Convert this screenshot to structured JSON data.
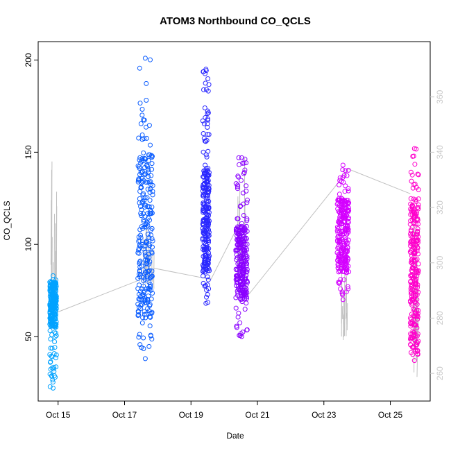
{
  "chart_data": {
    "type": "scatter",
    "title": "ATOM3 Northbound CO_QCLS",
    "xlabel": "Date",
    "ylabel": "CO_QCLS",
    "x_ticks": [
      "Oct 15",
      "Oct 17",
      "Oct 19",
      "Oct 21",
      "Oct 23",
      "Oct 25"
    ],
    "x_tick_days": [
      15,
      17,
      19,
      21,
      23,
      25
    ],
    "xlim": [
      14.4,
      26.2
    ],
    "ylim": [
      15,
      210
    ],
    "y_ticks": [
      50,
      100,
      150,
      200
    ],
    "y2lim": [
      250,
      380
    ],
    "y2_ticks": [
      260,
      280,
      300,
      320,
      340,
      360
    ],
    "grid": false,
    "legend": "none",
    "marker": "open-circle",
    "secondary_line_color": "#c0c0c0",
    "series": [
      {
        "color": "#00a2ff",
        "x": [
          14.75,
          14.95
        ],
        "y": [
          22,
          83
        ],
        "core": [
          55,
          80
        ]
      },
      {
        "color": "#0a5cff",
        "x": [
          17.4,
          17.85
        ],
        "y": [
          38,
          201
        ],
        "core": [
          60,
          150
        ]
      },
      {
        "color": "#2a28ff",
        "x": [
          19.35,
          19.55
        ],
        "y": [
          68,
          195
        ],
        "core": [
          85,
          140
        ]
      },
      {
        "color": "#8a00ff",
        "x": [
          20.35,
          20.7
        ],
        "y": [
          50,
          147
        ],
        "core": [
          70,
          110
        ]
      },
      {
        "color": "#d400ff",
        "x": [
          23.4,
          23.75
        ],
        "y": [
          70,
          143
        ],
        "core": [
          85,
          125
        ]
      },
      {
        "color": "#ff00cc",
        "x": [
          25.6,
          25.85
        ],
        "y": [
          37,
          152
        ],
        "core": [
          40,
          125
        ]
      }
    ],
    "secondary_line": [
      {
        "x": 14.95,
        "y2": 282
      },
      {
        "x": 17.5,
        "y2": 294
      },
      {
        "x": 17.9,
        "y2": 298
      },
      {
        "x": 19.6,
        "y2": 294
      },
      {
        "x": 20.4,
        "y2": 313
      },
      {
        "x": 20.7,
        "y2": 288
      },
      {
        "x": 23.5,
        "y2": 330
      },
      {
        "x": 23.72,
        "y2": 334
      },
      {
        "x": 25.6,
        "y2": 325
      }
    ],
    "secondary_spikes": [
      {
        "x": [
          14.75,
          14.95
        ],
        "y2": [
          276,
          342
        ]
      },
      {
        "x": [
          17.45,
          17.9
        ],
        "y2": [
          290,
          318
        ]
      },
      {
        "x": [
          20.4,
          20.65
        ],
        "y2": [
          290,
          338
        ]
      },
      {
        "x": [
          23.5,
          23.75
        ],
        "y2": [
          272,
          300
        ]
      },
      {
        "x": [
          25.65,
          25.85
        ],
        "y2": [
          258,
          320
        ]
      }
    ]
  }
}
